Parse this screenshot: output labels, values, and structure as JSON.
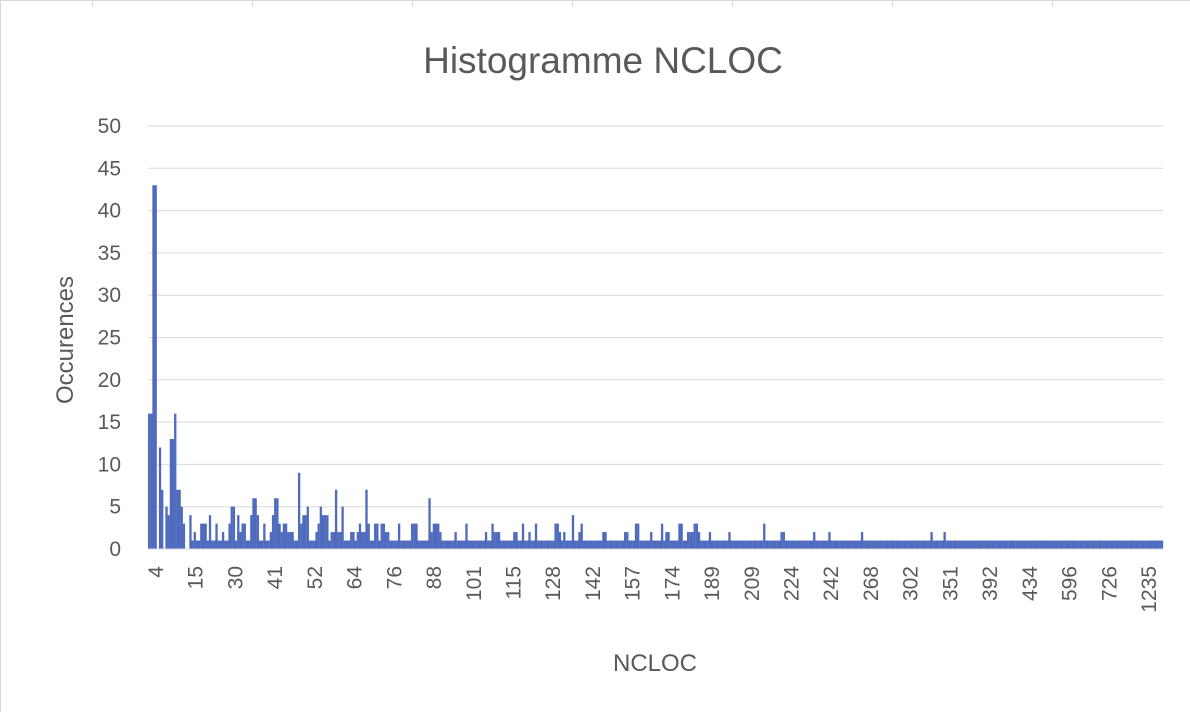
{
  "chart_data": {
    "type": "bar",
    "title": "Histogramme NCLOC",
    "xlabel": "NCLOC",
    "ylabel": "Occurences",
    "ylim": [
      0,
      50
    ],
    "yticks": [
      0,
      5,
      10,
      15,
      20,
      25,
      30,
      35,
      40,
      45,
      50
    ],
    "grid": true,
    "legend": "none",
    "bar_color": "#4f6bbd",
    "x_tick_labels": [
      "4",
      "15",
      "30",
      "41",
      "52",
      "64",
      "76",
      "88",
      "101",
      "115",
      "128",
      "142",
      "157",
      "174",
      "189",
      "209",
      "224",
      "242",
      "268",
      "302",
      "351",
      "392",
      "434",
      "596",
      "726",
      "1235"
    ],
    "values": [
      16,
      16,
      43,
      43,
      0,
      12,
      7,
      0,
      5,
      4,
      13,
      13,
      16,
      7,
      7,
      5,
      3,
      0,
      0,
      4,
      1,
      2,
      1,
      1,
      3,
      3,
      3,
      1,
      4,
      1,
      1,
      3,
      1,
      1,
      2,
      1,
      1,
      3,
      5,
      5,
      1,
      4,
      2,
      3,
      3,
      1,
      1,
      4,
      6,
      6,
      4,
      1,
      1,
      3,
      1,
      1,
      2,
      4,
      6,
      6,
      3,
      2,
      3,
      3,
      2,
      2,
      2,
      1,
      1,
      9,
      3,
      4,
      4,
      5,
      1,
      1,
      1,
      2,
      3,
      5,
      4,
      4,
      4,
      1,
      2,
      2,
      7,
      2,
      2,
      5,
      1,
      1,
      1,
      2,
      2,
      1,
      2,
      3,
      2,
      2,
      7,
      3,
      1,
      1,
      3,
      3,
      1,
      3,
      3,
      2,
      2,
      1,
      1,
      1,
      1,
      3,
      1,
      1,
      1,
      1,
      1,
      3,
      3,
      3,
      1,
      1,
      1,
      1,
      1,
      6,
      2,
      3,
      3,
      3,
      2,
      1,
      1,
      1,
      1,
      1,
      1,
      2,
      1,
      1,
      1,
      1,
      3,
      1,
      1,
      1,
      1,
      1,
      1,
      1,
      1,
      2,
      1,
      1,
      3,
      2,
      2,
      2,
      1,
      1,
      1,
      1,
      1,
      1,
      2,
      2,
      1,
      1,
      3,
      1,
      1,
      2,
      1,
      1,
      3,
      1,
      1,
      1,
      1,
      1,
      1,
      1,
      1,
      3,
      3,
      2,
      1,
      2,
      1,
      1,
      1,
      4,
      1,
      1,
      2,
      3,
      1,
      1,
      1,
      1,
      1,
      1,
      1,
      1,
      1,
      2,
      2,
      1,
      1,
      1,
      1,
      1,
      1,
      1,
      1,
      2,
      2,
      1,
      1,
      1,
      3,
      3,
      1,
      1,
      1,
      1,
      1,
      2,
      1,
      1,
      1,
      1,
      3,
      1,
      2,
      2,
      1,
      1,
      1,
      1,
      3,
      3,
      1,
      1,
      2,
      2,
      2,
      3,
      3,
      2,
      1,
      1,
      1,
      1,
      2,
      1,
      1,
      1,
      1,
      1,
      1,
      1,
      1,
      2,
      1,
      1,
      1,
      1,
      1,
      1,
      1,
      1,
      1,
      1,
      1,
      1,
      1,
      1,
      1,
      3,
      1,
      1,
      1,
      1,
      1,
      1,
      1,
      2,
      2,
      1,
      1,
      1,
      1,
      1,
      1,
      1,
      1,
      1,
      1,
      1,
      1,
      1,
      2,
      1,
      1,
      1,
      1,
      1,
      1,
      2,
      1,
      1,
      1,
      1,
      1,
      1,
      1,
      1,
      1,
      1,
      1,
      1,
      1,
      1,
      2,
      1,
      1,
      1,
      1,
      1,
      1,
      1,
      1,
      1,
      1,
      1,
      1,
      1,
      1,
      1,
      1,
      1,
      1,
      1,
      1,
      1,
      1,
      1,
      1,
      1,
      1,
      1,
      1,
      1,
      1,
      1,
      2,
      1,
      1,
      1,
      1,
      1,
      2,
      1,
      1,
      1,
      1,
      1,
      1,
      1,
      1,
      1,
      1,
      1,
      1,
      1,
      1,
      1,
      1,
      1,
      1,
      1,
      1,
      1,
      1,
      1,
      1,
      1,
      1,
      1,
      1,
      1,
      1,
      1,
      1,
      1,
      1,
      1,
      1,
      1,
      1,
      1,
      1,
      1,
      1,
      1,
      1,
      1,
      1,
      1,
      1,
      1,
      1,
      1,
      1,
      1,
      1,
      1,
      1,
      1,
      1,
      1,
      1,
      1,
      1,
      1,
      1,
      1,
      1,
      1,
      1,
      1,
      1,
      1,
      1,
      1,
      1,
      1,
      1,
      1,
      1,
      1,
      1,
      1,
      1,
      1,
      1,
      1,
      1,
      1,
      1,
      1,
      1,
      1,
      1,
      1,
      1,
      1,
      1,
      1,
      1,
      1,
      1
    ]
  }
}
